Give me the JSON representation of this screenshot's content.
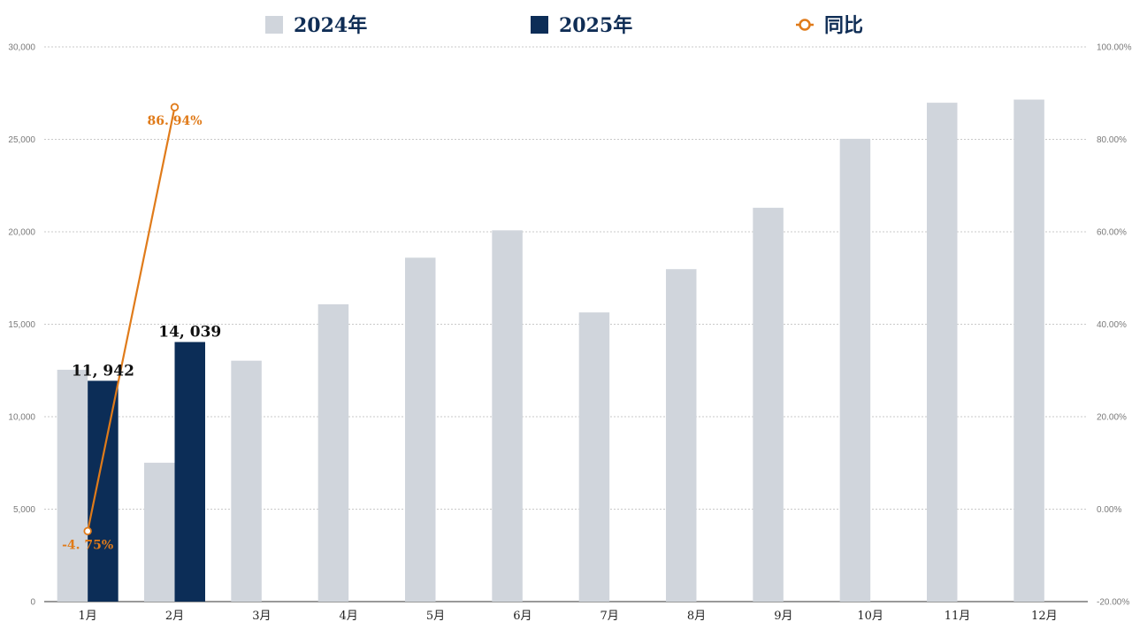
{
  "chart_data": {
    "type": "bar",
    "categories": [
      "1月",
      "2月",
      "3月",
      "4月",
      "5月",
      "6月",
      "7月",
      "8月",
      "9月",
      "10月",
      "11月",
      "12月"
    ],
    "series": [
      {
        "name": "2024年",
        "kind": "bar",
        "axis": "left",
        "color": "#d0d5dc",
        "values": [
          12540,
          7510,
          13030,
          16080,
          18600,
          20080,
          15640,
          17980,
          21300,
          25030,
          26980,
          27150
        ]
      },
      {
        "name": "2025年",
        "kind": "bar",
        "axis": "left",
        "color": "#0c2d57",
        "values": [
          11942,
          14039,
          null,
          null,
          null,
          null,
          null,
          null,
          null,
          null,
          null,
          null
        ],
        "data_labels": [
          "11, 942",
          "14, 039"
        ]
      },
      {
        "name": "同比",
        "kind": "line",
        "axis": "right",
        "color": "#e07b1a",
        "values": [
          -4.75,
          86.94,
          null,
          null,
          null,
          null,
          null,
          null,
          null,
          null,
          null,
          null
        ],
        "data_labels": [
          "-4. 75%",
          "86. 94%"
        ]
      }
    ],
    "y_left": {
      "range": [
        0,
        30000
      ],
      "ticks": [
        0,
        5000,
        10000,
        15000,
        20000,
        25000,
        30000
      ],
      "tick_labels": [
        "0",
        "5,000",
        "10,000",
        "15,000",
        "20,000",
        "25,000",
        "30,000"
      ]
    },
    "y_right": {
      "range": [
        -20,
        100
      ],
      "ticks": [
        -20,
        0,
        20,
        40,
        60,
        80,
        100
      ],
      "tick_labels": [
        "-20.00%",
        "0.00%",
        "20.00%",
        "40.00%",
        "60.00%",
        "80.00%",
        "100.00%"
      ]
    },
    "grid": true,
    "legend_position": "top-center"
  }
}
